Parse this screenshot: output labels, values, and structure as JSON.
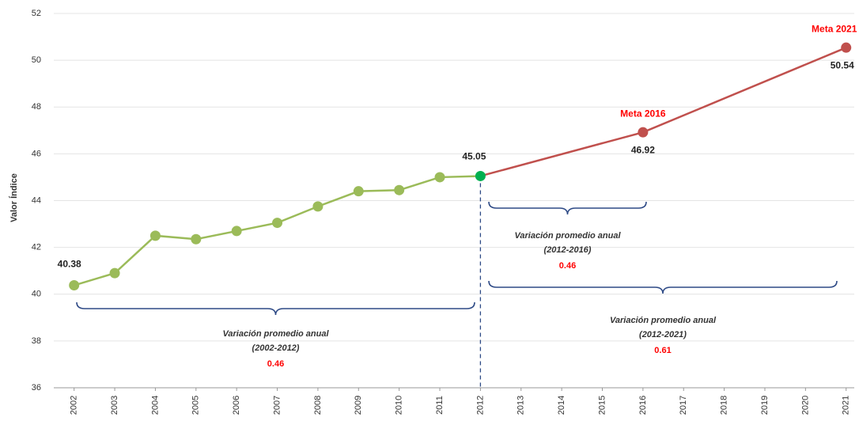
{
  "chart_data": {
    "type": "line",
    "y_label": "Valor Índice",
    "xlim": [
      2001.5,
      2021.2
    ],
    "xticks": [
      2002,
      2003,
      2004,
      2005,
      2006,
      2007,
      2008,
      2009,
      2010,
      2011,
      2012,
      2013,
      2014,
      2015,
      2016,
      2017,
      2018,
      2019,
      2020,
      2021
    ],
    "ylim": [
      36,
      52
    ],
    "yticks": [
      36,
      38,
      40,
      42,
      44,
      46,
      48,
      50,
      52
    ],
    "grid": true,
    "series": [
      {
        "color": "#9bbb59",
        "x": [
          2002,
          2003,
          2004,
          2005,
          2006,
          2007,
          2008,
          2009,
          2010,
          2011,
          2012
        ],
        "values": [
          40.38,
          40.9,
          42.5,
          42.35,
          42.7,
          43.05,
          43.75,
          44.4,
          44.45,
          45.0,
          45.05
        ]
      },
      {
        "color": "#c0504d",
        "x": [
          2012,
          2016,
          2021
        ],
        "values": [
          45.05,
          46.92,
          50.54
        ]
      }
    ],
    "annotations": [
      "Meta 2016",
      "Meta 2021"
    ],
    "braces": [
      {
        "label": "Variación promedio anual",
        "period": "(2002-2012)",
        "value": 0.46
      },
      {
        "label": "Variación promedio anual",
        "period": "(2012-2016)",
        "value": 0.46
      },
      {
        "label": "Variación promedio anual",
        "period": "(2012-2021)",
        "value": 0.61
      }
    ]
  }
}
